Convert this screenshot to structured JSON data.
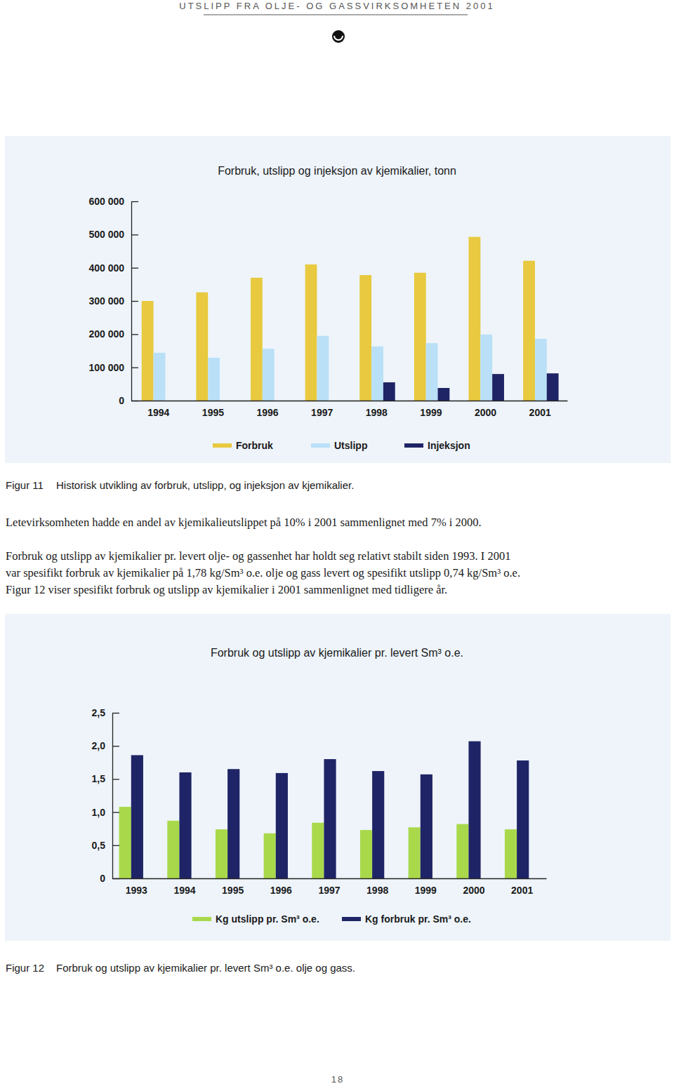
{
  "header": "UTSLIPP FRA OLJE- OG GASSVIRKSOMHETEN 2001",
  "chart_data": [
    {
      "type": "bar",
      "title": "Forbruk, utslipp og injeksjon av kjemikalier, tonn",
      "categories": [
        "1994",
        "1995",
        "1996",
        "1997",
        "1998",
        "1999",
        "2000",
        "2001"
      ],
      "series": [
        {
          "name": "Forbruk",
          "color": "#e8c93f",
          "values": [
            300000,
            326000,
            370000,
            410000,
            378000,
            385000,
            493000,
            421000
          ]
        },
        {
          "name": "Utslipp",
          "color": "#b9e0f7",
          "values": [
            144000,
            129000,
            156000,
            195000,
            163000,
            173000,
            199000,
            186000
          ]
        },
        {
          "name": "Injeksjon",
          "color": "#1f2466",
          "values": [
            null,
            null,
            null,
            null,
            55000,
            38000,
            80000,
            82000
          ]
        }
      ],
      "ylim": [
        0,
        600000
      ],
      "yticks": [
        0,
        {
          "value": 100000,
          "label": "100 000"
        },
        {
          "value": 200000,
          "label": "200 000"
        },
        {
          "value": 300000,
          "label": "300 000"
        },
        {
          "value": 400000,
          "label": "400 000"
        },
        {
          "value": 500000,
          "label": "500 000"
        },
        {
          "value": 600000,
          "label": "600 000"
        }
      ],
      "grid": false,
      "legend": "bottom"
    },
    {
      "type": "bar",
      "title": "Forbruk og utslipp av kjemikalier pr. levert Sm³ o.e.",
      "categories": [
        "1993",
        "1994",
        "1995",
        "1996",
        "1997",
        "1998",
        "1999",
        "2000",
        "2001"
      ],
      "series": [
        {
          "name": "Kg utslipp pr. Sm³ o.e.",
          "color": "#a9d94b",
          "values": [
            1.08,
            0.87,
            0.74,
            0.68,
            0.84,
            0.73,
            0.77,
            0.82,
            0.74
          ]
        },
        {
          "name": "Kg forbruk pr. Sm³ o.e.",
          "color": "#1f2466",
          "values": [
            1.86,
            1.6,
            1.65,
            1.59,
            1.8,
            1.62,
            1.57,
            2.07,
            1.78
          ]
        }
      ],
      "ylim": [
        0,
        2.5
      ],
      "yticks": [
        0,
        {
          "value": 0.5,
          "label": "0,5"
        },
        {
          "value": 1,
          "label": "1,0"
        },
        {
          "value": 1.5,
          "label": "1,5"
        },
        {
          "value": 2,
          "label": "2,0"
        },
        {
          "value": 2.5,
          "label": "2,5"
        }
      ],
      "grid": false,
      "legend": "bottom"
    }
  ],
  "captions": [
    {
      "label": "Figur 11",
      "text": "Historisk utvikling av forbruk, utslipp, og injeksjon av kjemikalier."
    },
    {
      "label": "Figur 12",
      "text": "Forbruk og utslipp av kjemikalier pr. levert Sm³ o.e. olje og gass."
    }
  ],
  "paragraphs": [
    [
      "Letevirksomheten hadde en andel av kjemikalieutslippet på 10% i 2001 sammenlignet med 7% i 2000."
    ],
    [
      "Forbruk og utslipp av kjemikalier pr. levert olje- og gassenhet har holdt seg relativt stabilt siden 1993. I 2001",
      "var spesifikt forbruk av kjemikalier på 1,78 kg/Sm³ o.e. olje og gass levert og spesifikt utslipp 0,74 kg/Sm³ o.e.",
      "Figur 12 viser spesifikt forbruk og utslipp av kjemikalier i 2001 sammenlignet med tidligere år."
    ]
  ],
  "page_number": "18"
}
